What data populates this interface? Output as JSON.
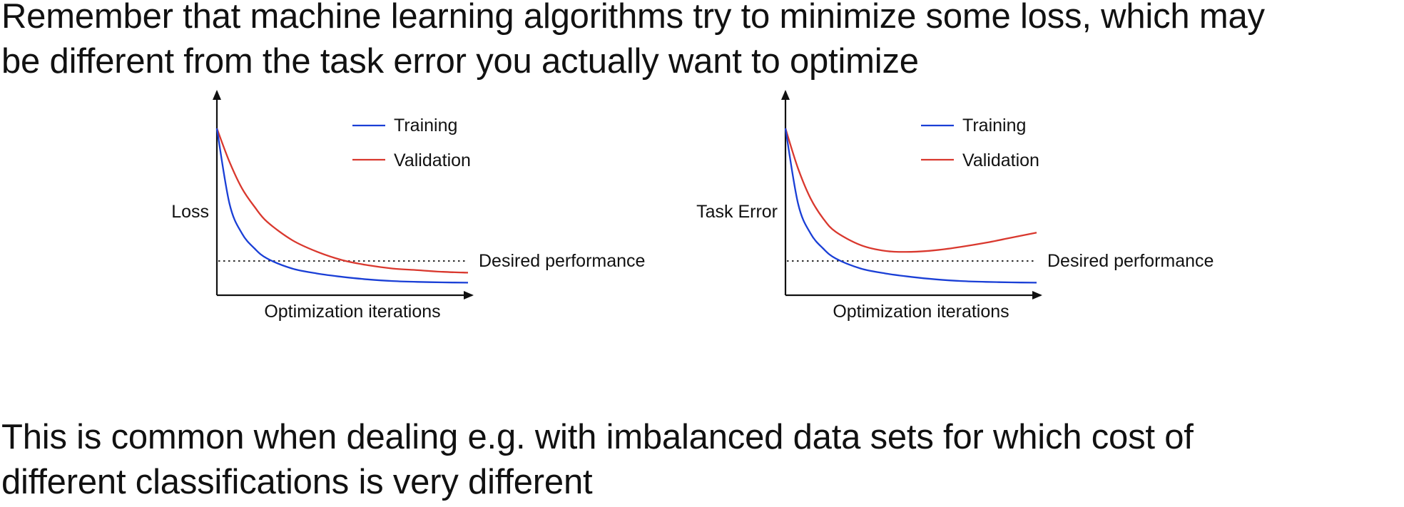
{
  "intro": {
    "line1": "Remember that machine learning algorithms try to minimize some loss, which may",
    "line2": "be different from the task error you actually want to optimize"
  },
  "outro": {
    "line1": "This is common when dealing e.g. with imbalanced data sets for which cost of",
    "line2": "different classifications is very different"
  },
  "colors": {
    "training": "#1a3fd6",
    "validation": "#d9382e",
    "axis": "#111111",
    "target": "#111111"
  },
  "chart_data": [
    {
      "type": "line",
      "xlabel": "Optimization iterations",
      "ylabel": "Loss",
      "target_label": "Desired performance",
      "target": 0.18,
      "x": [
        0,
        0.05,
        0.1,
        0.15,
        0.2,
        0.3,
        0.4,
        0.5,
        0.6,
        0.7,
        0.8,
        0.9,
        1.0
      ],
      "series": [
        {
          "name": "Training",
          "values": [
            1.0,
            0.55,
            0.37,
            0.28,
            0.22,
            0.16,
            0.13,
            0.11,
            0.095,
            0.085,
            0.08,
            0.077,
            0.075
          ]
        },
        {
          "name": "Validation",
          "values": [
            1.0,
            0.8,
            0.64,
            0.53,
            0.44,
            0.33,
            0.26,
            0.21,
            0.18,
            0.16,
            0.15,
            0.14,
            0.135
          ]
        }
      ]
    },
    {
      "type": "line",
      "xlabel": "Optimization iterations",
      "ylabel": "Task Error",
      "target_label": "Desired performance",
      "target": 0.18,
      "x": [
        0,
        0.05,
        0.1,
        0.15,
        0.2,
        0.3,
        0.4,
        0.5,
        0.6,
        0.7,
        0.8,
        0.9,
        1.0
      ],
      "series": [
        {
          "name": "Training",
          "values": [
            1.0,
            0.55,
            0.37,
            0.28,
            0.22,
            0.16,
            0.13,
            0.11,
            0.095,
            0.085,
            0.08,
            0.077,
            0.075
          ]
        },
        {
          "name": "Validation",
          "values": [
            1.0,
            0.76,
            0.58,
            0.46,
            0.38,
            0.3,
            0.265,
            0.26,
            0.27,
            0.29,
            0.315,
            0.345,
            0.375
          ]
        }
      ]
    }
  ]
}
